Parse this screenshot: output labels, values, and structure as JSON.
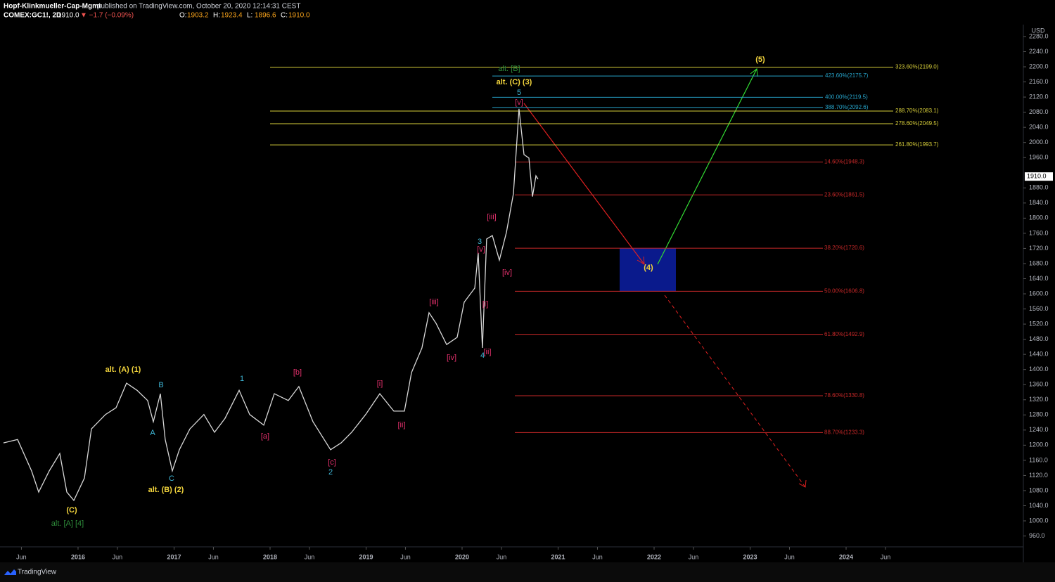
{
  "header": {
    "author": "Hopf-Klinkmueller-Cap-Mgmt",
    "published": "published on TradingView.com, October 20, 2020 12:14:31 CEST",
    "symbol": "COMEX:GC1!, 2D",
    "change": "▼ −1.7 (−0.09%)",
    "ohlc": [
      [
        "O:",
        "1903.2"
      ],
      [
        "H:",
        "1923.4"
      ],
      [
        "L:",
        "1896.6"
      ],
      [
        "C:",
        "1910.0"
      ]
    ],
    "currency": "USD",
    "footer": "TradingView"
  },
  "chart_data": {
    "type": "line",
    "background": "#000000",
    "last_price": {
      "value": 1910,
      "label": "1910.0"
    },
    "series": [
      {
        "color": "#d8d8d8"
      }
    ],
    "x": [
      2015.223,
      2015.37,
      2015.516,
      2015.59,
      2015.7,
      2015.81,
      2015.883,
      2015.956,
      2016.066,
      2016.139,
      2016.286,
      2016.396,
      2016.505,
      2016.615,
      2016.725,
      2016.784,
      2016.857,
      2016.908,
      2016.982,
      2017.055,
      2017.165,
      2017.311,
      2017.421,
      2017.531,
      2017.678,
      2017.788,
      2017.934,
      2018.044,
      2018.19,
      2018.3,
      2018.447,
      2018.63,
      2018.74,
      2018.85,
      2018.996,
      2019.143,
      2019.289,
      2019.399,
      2019.473,
      2019.582,
      2019.656,
      2019.729,
      2019.839,
      2019.949,
      2020.022,
      2020.132,
      2020.168,
      2020.212,
      2020.256,
      2020.315,
      2020.388,
      2020.462,
      2020.535,
      2020.593,
      2020.645,
      2020.696,
      2020.733,
      2020.769,
      2020.791
    ],
    "values": [
      1206,
      1215,
      1132,
      1076,
      1132,
      1178,
      1076,
      1054,
      1113,
      1243,
      1281,
      1299,
      1364,
      1345,
      1318,
      1262,
      1336,
      1215,
      1132,
      1188,
      1243,
      1281,
      1234,
      1271,
      1345,
      1281,
      1253,
      1336,
      1318,
      1355,
      1262,
      1188,
      1206,
      1234,
      1281,
      1336,
      1290,
      1290,
      1392,
      1457,
      1550,
      1522,
      1466,
      1485,
      1578,
      1615,
      1708,
      1457,
      1745,
      1754,
      1689,
      1763,
      1865,
      2089,
      1968,
      1959,
      1857,
      1912,
      1903
    ],
    "xlim": [
      2015.187,
      2025.846
    ],
    "ylim": [
      931.3,
      2311.5
    ],
    "xticks": [
      {
        "value": 2015.41,
        "label": "Jun"
      },
      2016,
      {
        "value": 2016.41,
        "label": "Jun"
      },
      2017,
      {
        "value": 2017.41,
        "label": "Jun"
      },
      2018,
      {
        "value": 2018.41,
        "label": "Jun"
      },
      2019,
      {
        "value": 2019.41,
        "label": "Jun"
      },
      2020,
      {
        "value": 2020.41,
        "label": "Jun"
      },
      2021,
      {
        "value": 2021.41,
        "label": "Jun"
      },
      2022,
      {
        "value": 2022.41,
        "label": "Jun"
      },
      2023,
      {
        "value": 2023.41,
        "label": "Jun"
      },
      2024,
      {
        "value": 2024.41,
        "label": "Jun"
      }
    ],
    "yticks": [
      {
        "value": 960,
        "label": "960.0"
      },
      {
        "value": 1000,
        "label": "1000.0"
      },
      {
        "value": 1040,
        "label": "1040.0"
      },
      {
        "value": 1080,
        "label": "1080.0"
      },
      {
        "value": 1120,
        "label": "1120.0"
      },
      {
        "value": 1160,
        "label": "1160.0"
      },
      {
        "value": 1200,
        "label": "1200.0"
      },
      {
        "value": 1240,
        "label": "1240.0"
      },
      {
        "value": 1280,
        "label": "1280.0"
      },
      {
        "value": 1320,
        "label": "1320.0"
      },
      {
        "value": 1360,
        "label": "1360.0"
      },
      {
        "value": 1400,
        "label": "1400.0"
      },
      {
        "value": 1440,
        "label": "1440.0"
      },
      {
        "value": 1480,
        "label": "1480.0"
      },
      {
        "value": 1520,
        "label": "1520.0"
      },
      {
        "value": 1560,
        "label": "1560.0"
      },
      {
        "value": 1600,
        "label": "1600.0"
      },
      {
        "value": 1640,
        "label": "1640.0"
      },
      {
        "value": 1680,
        "label": "1680.0"
      },
      {
        "value": 1720,
        "label": "1720.0"
      },
      {
        "value": 1760,
        "label": "1760.0"
      },
      {
        "value": 1800,
        "label": "1800.0"
      },
      {
        "value": 1840,
        "label": "1840.0"
      },
      {
        "value": 1880,
        "label": "1880.0"
      },
      {
        "value": 1960,
        "label": "1960.0"
      },
      {
        "value": 2000,
        "label": "2000.0"
      },
      {
        "value": 2040,
        "label": "2040.0"
      },
      {
        "value": 2080,
        "label": "2080.0"
      },
      {
        "value": 2120,
        "label": "2120.0"
      },
      {
        "value": 2160,
        "label": "2160.0"
      },
      {
        "value": 2200,
        "label": "2200.0"
      },
      {
        "value": 2240,
        "label": "2240.0"
      },
      {
        "value": 2280,
        "label": "2280.0"
      }
    ],
    "levels": [
      {
        "label": "423.60%(2175.7)",
        "value": 2175.7,
        "color": "#26a3c9"
      },
      {
        "label": "400.00%(2119.5)",
        "value": 2119.5,
        "color": "#26a3c9"
      },
      {
        "label": "388.70%(2092.6)",
        "value": 2092.6,
        "color": "#26a3c9"
      },
      {
        "label": "323.60%(2199.0)",
        "value": 2199,
        "color": "#d8cf3a"
      },
      {
        "label": "288.70%(2083.1)",
        "value": 2083.1,
        "color": "#d8cf3a"
      },
      {
        "label": "278.60%(2049.5)",
        "value": 2049.5,
        "color": "#d8cf3a"
      },
      {
        "label": "261.80%(1993.7)",
        "value": 1993.7,
        "color": "#d8cf3a"
      },
      {
        "label": "14.60%(1948.3)",
        "value": 1948.3,
        "color": "#c62828"
      },
      {
        "label": "23.60%(1861.5)",
        "value": 1861.5,
        "color": "#c62828"
      },
      {
        "label": "38.20%(1720.6)",
        "value": 1720.6,
        "color": "#c62828"
      },
      {
        "label": "50.00%(1606.8)",
        "value": 1606.8,
        "color": "#c62828"
      },
      {
        "label": "61.80%(1492.9)",
        "value": 1492.9,
        "color": "#c62828"
      },
      {
        "label": "78.60%(1330.8)",
        "value": 1330.8,
        "color": "#c62828"
      },
      {
        "label": "88.70%(1233.3)",
        "value": 1233.3,
        "color": "#c62828"
      }
    ],
    "annotations": [
      {
        "text": "alt. (A) (1)",
        "color": "#f2d43c"
      },
      {
        "text": "B",
        "color": "#3fb8d8"
      },
      {
        "text": "A",
        "color": "#3fb8d8"
      },
      {
        "text": "C",
        "color": "#3fb8d8"
      },
      {
        "text": "alt. (B) (2)",
        "color": "#f2d43c"
      },
      {
        "text": "(C)",
        "color": "#f2d43c"
      },
      {
        "text": "alt. [A] [4]",
        "color": "#2e8b3a"
      },
      {
        "text": "1",
        "color": "#3fb8d8"
      },
      {
        "text": "[a]",
        "color": "#e3306c"
      },
      {
        "text": "[b]",
        "color": "#e3306c"
      },
      {
        "text": "[c]",
        "color": "#e3306c"
      },
      {
        "text": "2",
        "color": "#3fb8d8"
      },
      {
        "text": "[i]",
        "color": "#e3306c"
      },
      {
        "text": "[ii]",
        "color": "#e3306c"
      },
      {
        "text": "[iii]",
        "color": "#e3306c"
      },
      {
        "text": "[iv]",
        "color": "#e3306c"
      },
      {
        "text": "[i]",
        "color": "#e3306c"
      },
      {
        "text": "[ii]",
        "color": "#e3306c"
      },
      {
        "text": "4",
        "color": "#3fb8d8"
      },
      {
        "text": "3",
        "color": "#3fb8d8"
      },
      {
        "text": "[v]",
        "color": "#e3306c"
      },
      {
        "text": "[iii]",
        "color": "#e3306c"
      },
      {
        "text": "[iv]",
        "color": "#e3306c"
      },
      {
        "text": "[v]",
        "color": "#e3306c"
      },
      {
        "text": "5",
        "color": "#3fb8d8"
      },
      {
        "text": "alt. (C) (3)",
        "color": "#f2d43c"
      },
      {
        "text": "alt. [B]",
        "color": "#2e8b3a"
      },
      {
        "text": "(4)",
        "color": "#f2d43c"
      },
      {
        "text": "(5)",
        "color": "#f2d43c"
      }
    ]
  }
}
